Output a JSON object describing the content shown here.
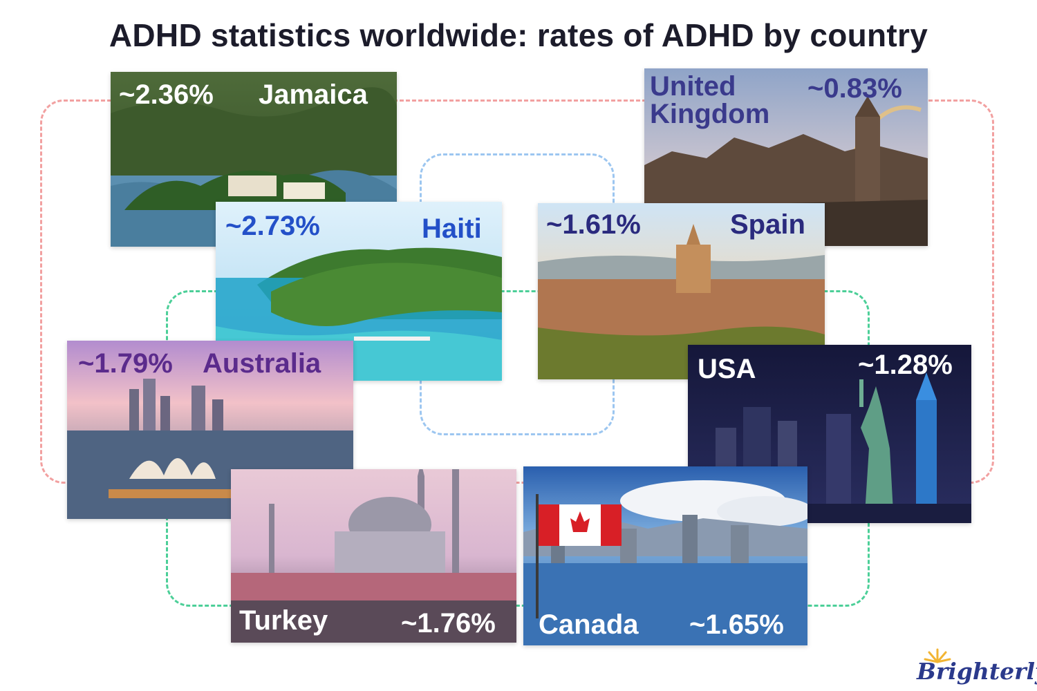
{
  "title": "ADHD statistics worldwide: rates of ADHD by country",
  "logo": "Brighterly",
  "colors": {
    "loop_red": "#f2a0a0",
    "loop_blue": "#9cc6f0",
    "loop_green": "#4ccf98",
    "label_white": "#ffffff",
    "label_navy": "#3a3a8c",
    "label_blue": "#2350c8",
    "label_purple": "#5b2b8c"
  },
  "countries": {
    "jamaica": {
      "name": "Jamaica",
      "rate": "~2.36%"
    },
    "uk": {
      "name": "United Kingdom",
      "rate": "~0.83%"
    },
    "haiti": {
      "name": "Haiti",
      "rate": "~2.73%"
    },
    "spain": {
      "name": "Spain",
      "rate": "~1.61%"
    },
    "australia": {
      "name": "Australia",
      "rate": "~1.79%"
    },
    "usa": {
      "name": "USA",
      "rate": "~1.28%"
    },
    "turkey": {
      "name": "Turkey",
      "rate": "~1.76%"
    },
    "canada": {
      "name": "Canada",
      "rate": "~1.65%"
    }
  }
}
